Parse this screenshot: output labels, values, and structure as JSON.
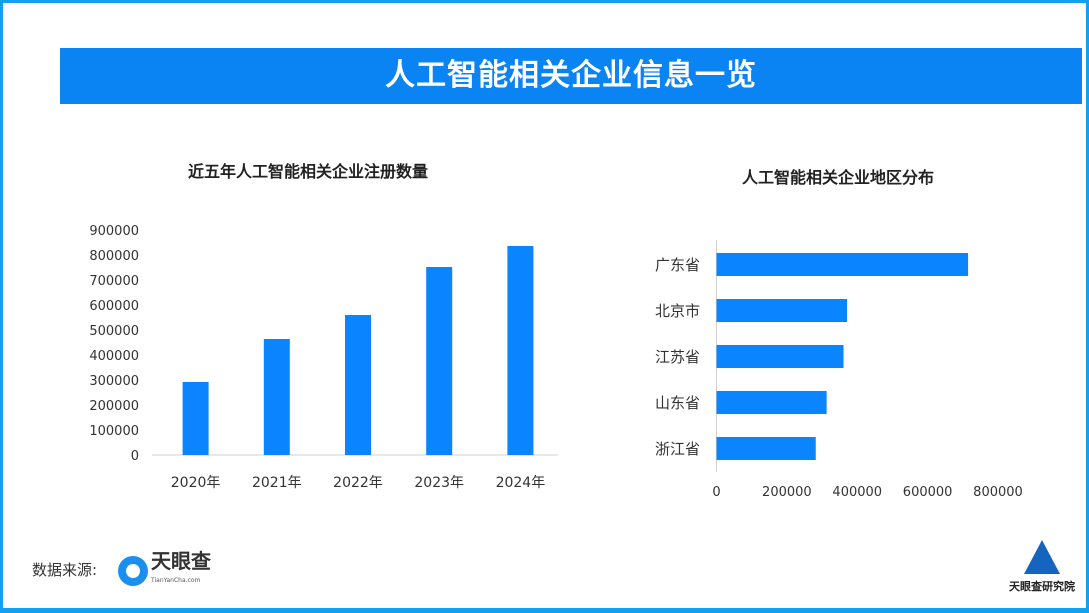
{
  "banner_title": "人工智能相关企业信息一览",
  "source_label": "数据来源:",
  "source_logo": {
    "name": "天眼查",
    "sub": "TianYanCha.com"
  },
  "institute_logo": "天眼查研究院",
  "colors": {
    "bar": "#0a84ff",
    "banner": "#0a84f2",
    "frame": "#12a0f0"
  },
  "chart_data": [
    {
      "type": "bar",
      "title": "近五年人工智能相关企业注册数量",
      "categories": [
        "2020年",
        "2021年",
        "2022年",
        "2023年",
        "2024年"
      ],
      "values": [
        292000,
        464000,
        560000,
        752000,
        836000
      ],
      "ylim": [
        0,
        900000
      ],
      "yticks": [
        "0",
        "100000",
        "200000",
        "300000",
        "400000",
        "500000",
        "600000",
        "700000",
        "800000",
        "900000"
      ],
      "grid": false
    },
    {
      "type": "bar",
      "orientation": "horizontal",
      "title": "人工智能相关企业地区分布",
      "categories": [
        "广东省",
        "北京市",
        "江苏省",
        "山东省",
        "浙江省"
      ],
      "values": [
        715000,
        371000,
        361000,
        313000,
        282000
      ],
      "xlim": [
        0,
        800000
      ],
      "xticks": [
        "0",
        "200000",
        "400000",
        "600000",
        "800000"
      ],
      "grid": false
    }
  ]
}
